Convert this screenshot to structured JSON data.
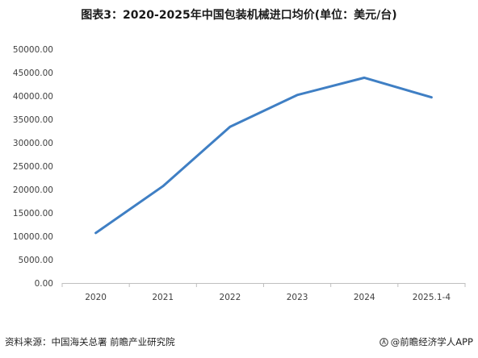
{
  "title": "图表3：2020-2025年中国包装机械进口均价(单位：美元/台)",
  "footer": {
    "source": "资料来源：中国海关总署 前瞻产业研究院",
    "brand": "@前瞻经济学人APP"
  },
  "colors": {
    "line": "#3f7fc4",
    "axis": "#bfbfbf",
    "tick_text": "#404040"
  },
  "chart_data": {
    "type": "line",
    "title": "图表3：2020-2025年中国包装机械进口均价(单位：美元/台)",
    "xlabel": "",
    "ylabel": "",
    "categories": [
      "2020",
      "2021",
      "2022",
      "2023",
      "2024",
      "2025.1-4"
    ],
    "y_tick_labels": [
      "0.00",
      "5000.00",
      "10000.00",
      "15000.00",
      "20000.00",
      "25000.00",
      "30000.00",
      "35000.00",
      "40000.00",
      "45000.00",
      "50000.00"
    ],
    "ylim": [
      0,
      50000
    ],
    "y_step": 5000,
    "grid": false,
    "legend": "none",
    "series": [
      {
        "values": [
          10700,
          20700,
          33400,
          40200,
          43900,
          39700
        ]
      }
    ]
  }
}
